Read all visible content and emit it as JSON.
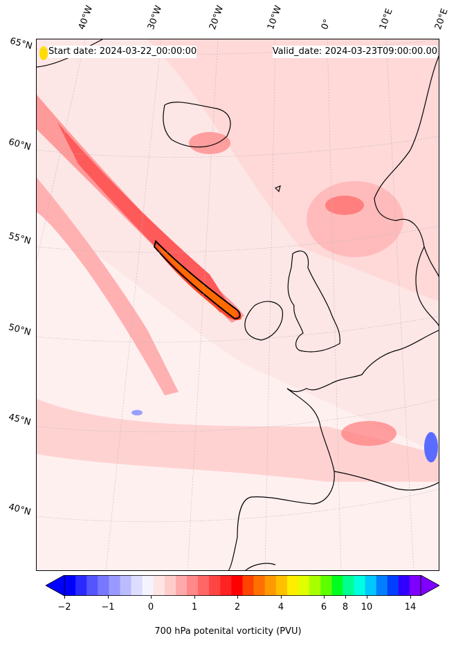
{
  "header": {
    "start_date": "Start date: 2024-03-22_00:00:00",
    "valid_date": "Valid_date: 2024-03-23T09:00:00.00"
  },
  "longitude_labels": [
    "40°W",
    "30°W",
    "20°W",
    "10°W",
    "0°",
    "10°E",
    "20°E"
  ],
  "latitude_labels": [
    "65°N",
    "60°N",
    "55°N",
    "50°N",
    "45°N",
    "40°N"
  ],
  "colorbar": {
    "label": "700 hPa potenital vorticity (PVU)",
    "ticks": [
      "−2",
      "−1",
      "0",
      "1",
      "2",
      "4",
      "6",
      "8",
      "10",
      "14"
    ],
    "colors": [
      "#0000ff",
      "#2a2aff",
      "#5555ff",
      "#7777ff",
      "#9999ff",
      "#bbbbff",
      "#ddddff",
      "#f4f4ff",
      "#ffe4e4",
      "#ffcccc",
      "#ffaaaa",
      "#ff8888",
      "#ff6666",
      "#ff4444",
      "#ff2222",
      "#ff0000",
      "#ff4400",
      "#ff7000",
      "#ff9900",
      "#ffc000",
      "#ffee00",
      "#e0ff00",
      "#a8ff00",
      "#60ff00",
      "#00ff20",
      "#00ff90",
      "#00ffe0",
      "#00c8ff",
      "#0080ff",
      "#0040ff",
      "#3000ff",
      "#8000ff"
    ],
    "extend": "both"
  },
  "map": {
    "projection": "oblique conic",
    "field": "700 hPa potential vorticity",
    "background_color": "#fde4e4"
  }
}
